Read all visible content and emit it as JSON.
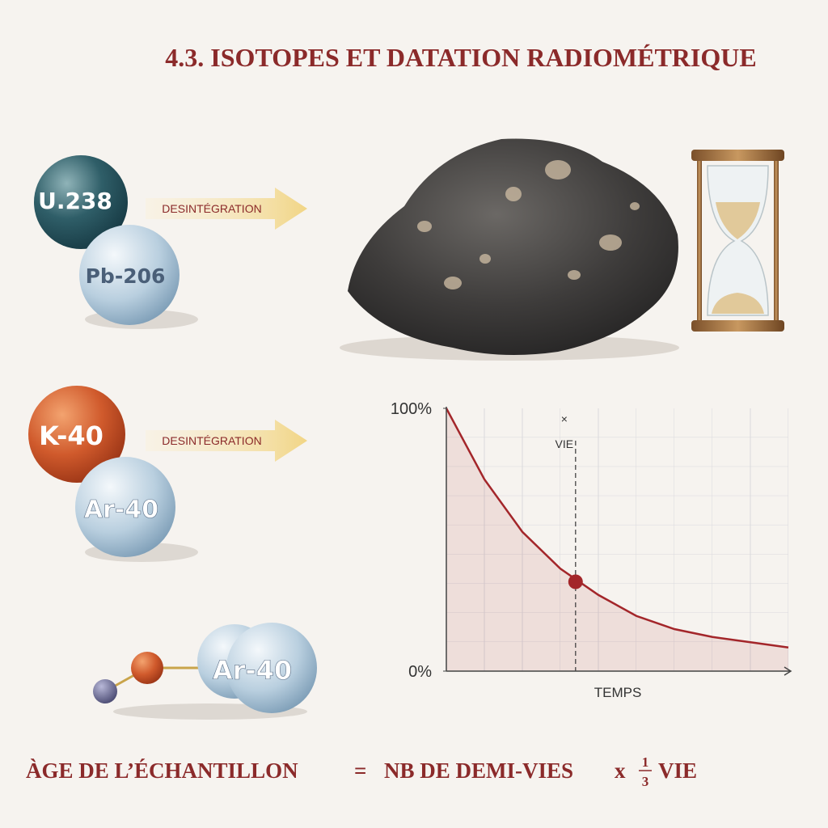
{
  "title": "4.3. ISOTOPES ET DATATION RADIOMÉTRIQUE",
  "decays": [
    {
      "parent": "U.238",
      "child": "Pb-206",
      "arrow": "DESINTÉGRATION"
    },
    {
      "parent": "K-40",
      "child": "Ar-40",
      "arrow": "DESINTÉGRATION"
    }
  ],
  "molecule_label": "Ar-40",
  "formula": {
    "left": "ÀGE DE L’ÉCHANTILLON",
    "equals": "=",
    "middle": "NB DE DEMI-VIES",
    "times": "x",
    "frac_top": "1",
    "frac_bottom": "3",
    "right": "VIE"
  },
  "chart_data": {
    "type": "line",
    "x_label": "TEMPS",
    "x": [
      0,
      1,
      2,
      3,
      4,
      5,
      6,
      7,
      8,
      9
    ],
    "xlim": [
      0,
      9
    ],
    "series": [
      {
        "color": "#a3262a",
        "values": [
          100,
          73,
          53,
          39,
          29,
          21,
          16,
          13,
          11,
          9
        ]
      }
    ],
    "ylim": [
      0,
      100
    ],
    "yticks": [
      {
        "value": 0,
        "label": "0%"
      },
      {
        "value": 100,
        "label": "100%"
      }
    ],
    "marker": {
      "x": 3.4,
      "y": 34
    },
    "annotations": [
      "×",
      "VIE"
    ]
  }
}
